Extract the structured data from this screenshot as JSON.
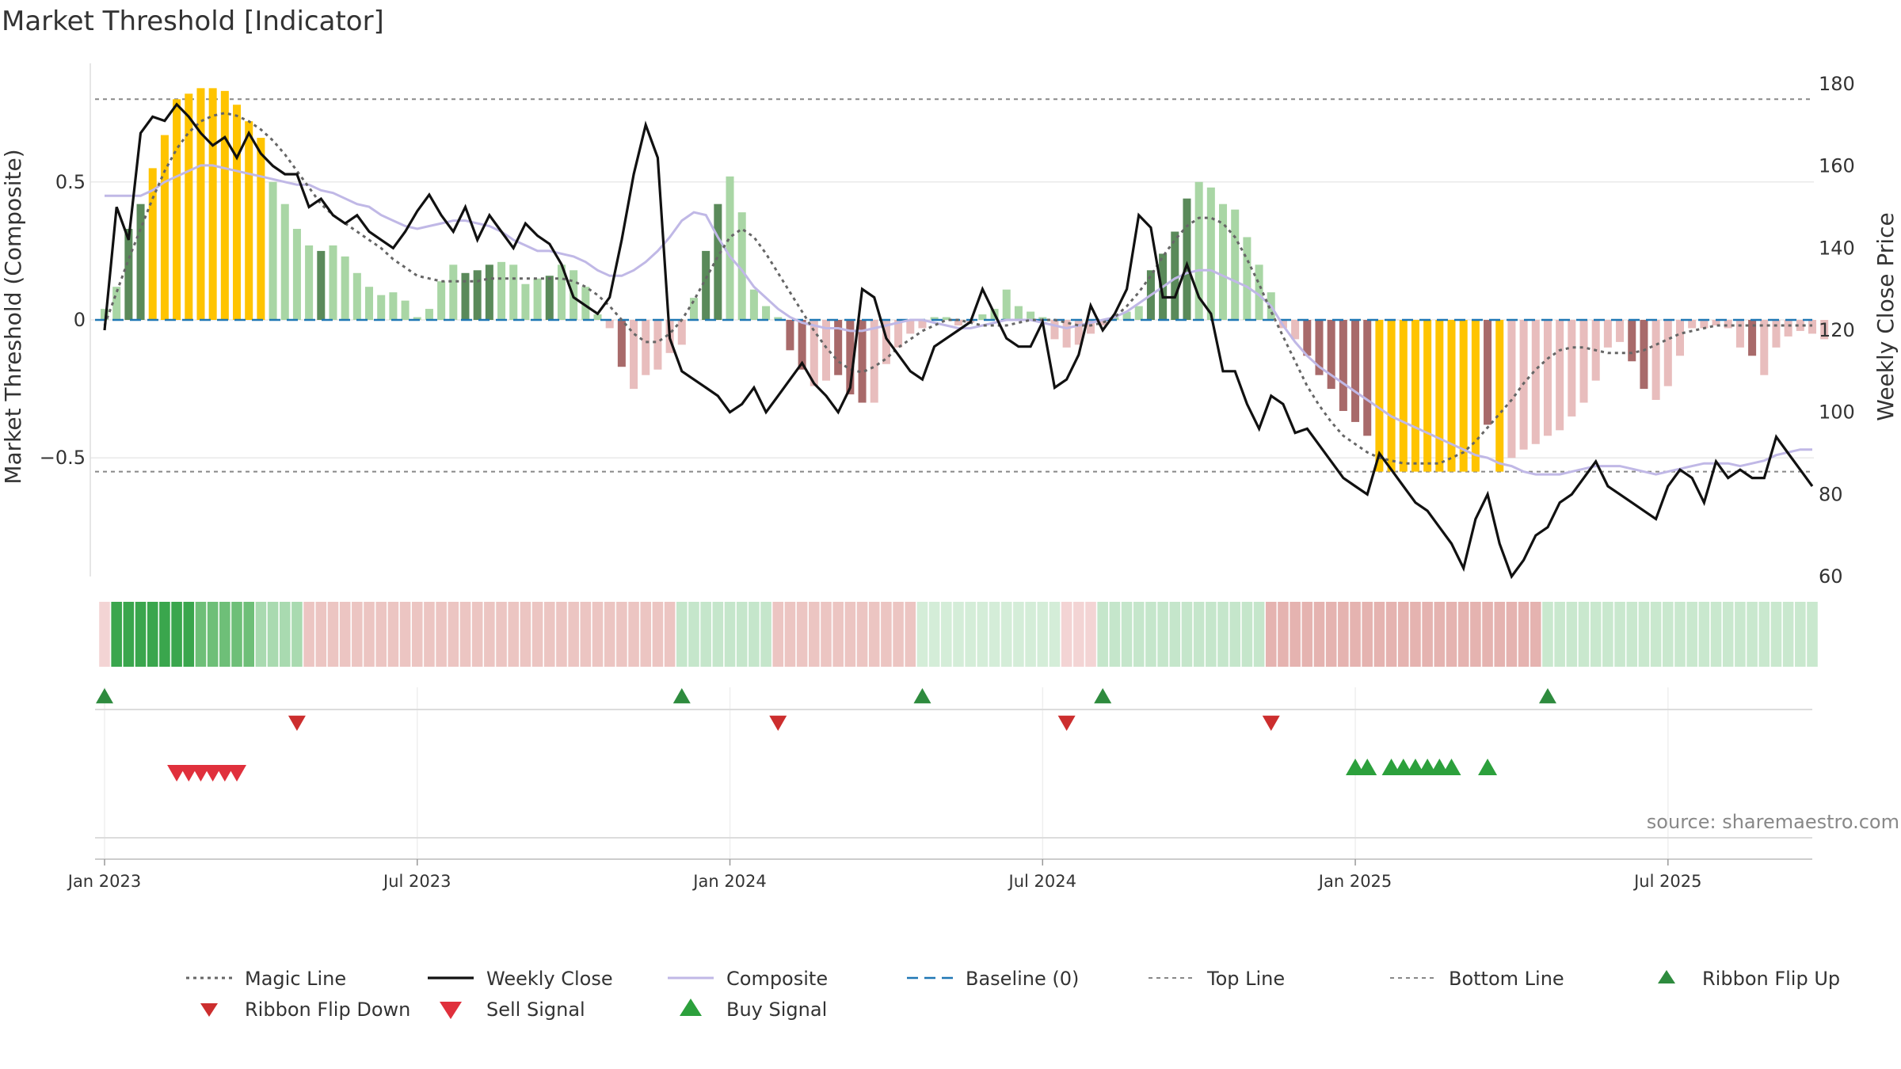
{
  "chart_data": {
    "type": "bar",
    "title": "Market Threshold [Indicator]",
    "ylabel_left": "Market Threshold (Composite)",
    "ylabel_right": "Weekly Close Price",
    "source": "source: sharemaestro.com",
    "left_ticks": [
      {
        "v": 0.5,
        "label": "0.5"
      },
      {
        "v": 0,
        "label": "0"
      },
      {
        "v": -0.5,
        "label": "−0.5"
      }
    ],
    "right_ticks": [
      {
        "v": 180,
        "label": "180"
      },
      {
        "v": 160,
        "label": "160"
      },
      {
        "v": 140,
        "label": "140"
      },
      {
        "v": 120,
        "label": "120"
      },
      {
        "v": 100,
        "label": "100"
      },
      {
        "v": 80,
        "label": "80"
      },
      {
        "v": 60,
        "label": "60"
      }
    ],
    "x_ticks": [
      {
        "label": "Jan 2023",
        "week": 0
      },
      {
        "label": "Jul 2023",
        "week": 26
      },
      {
        "label": "Jan 2024",
        "week": 52
      },
      {
        "label": "Jul 2024",
        "week": 78
      },
      {
        "label": "Jan 2025",
        "week": 104
      },
      {
        "label": "Jul 2025",
        "week": 130
      }
    ],
    "left_ylim": [
      -0.93,
      0.93
    ],
    "right_ylim": [
      60,
      185
    ],
    "top_line": 0.8,
    "bottom_line": -0.55,
    "weeks": 143,
    "histogram": [
      0.04,
      0.12,
      0.33,
      0.42,
      0.55,
      0.67,
      0.8,
      0.82,
      0.84,
      0.84,
      0.83,
      0.78,
      0.72,
      0.66,
      0.5,
      0.42,
      0.33,
      0.27,
      0.25,
      0.27,
      0.23,
      0.17,
      0.12,
      0.09,
      0.1,
      0.07,
      0.01,
      0.04,
      0.14,
      0.2,
      0.17,
      0.18,
      0.2,
      0.21,
      0.2,
      0.13,
      0.15,
      0.16,
      0.2,
      0.18,
      0.12,
      0.02,
      -0.03,
      -0.17,
      -0.25,
      -0.2,
      -0.18,
      -0.12,
      -0.09,
      0.08,
      0.25,
      0.42,
      0.52,
      0.39,
      0.11,
      0.05,
      0.01,
      -0.11,
      -0.18,
      -0.24,
      -0.22,
      -0.2,
      -0.27,
      -0.3,
      -0.3,
      -0.16,
      -0.1,
      -0.05,
      -0.03,
      0.01,
      0.01,
      -0.02,
      -0.01,
      0.02,
      0.04,
      0.11,
      0.05,
      0.03,
      0.01,
      -0.07,
      -0.1,
      -0.09,
      -0.05,
      -0.02,
      0.01,
      0.03,
      0.05,
      0.18,
      0.24,
      0.32,
      0.44,
      0.5,
      0.48,
      0.42,
      0.4,
      0.3,
      0.2,
      0.1,
      -0.03,
      -0.07,
      -0.13,
      -0.2,
      -0.25,
      -0.33,
      -0.37,
      -0.42,
      -0.55,
      -0.55,
      -0.55,
      -0.55,
      -0.55,
      -0.55,
      -0.55,
      -0.55,
      -0.55,
      -0.38,
      -0.55,
      -0.5,
      -0.47,
      -0.45,
      -0.42,
      -0.4,
      -0.35,
      -0.3,
      -0.22,
      -0.1,
      -0.08,
      -0.15,
      -0.25,
      -0.29,
      -0.24,
      -0.13,
      -0.03,
      -0.03,
      -0.02,
      -0.03,
      -0.1,
      -0.13,
      -0.2,
      -0.1,
      -0.06,
      -0.04,
      -0.05,
      -0.07
    ],
    "composite": [
      0.45,
      0.45,
      0.45,
      0.45,
      0.47,
      0.5,
      0.52,
      0.54,
      0.56,
      0.56,
      0.55,
      0.54,
      0.53,
      0.52,
      0.51,
      0.5,
      0.49,
      0.49,
      0.47,
      0.46,
      0.44,
      0.42,
      0.41,
      0.38,
      0.36,
      0.34,
      0.33,
      0.34,
      0.35,
      0.36,
      0.36,
      0.35,
      0.34,
      0.32,
      0.29,
      0.27,
      0.25,
      0.25,
      0.24,
      0.23,
      0.21,
      0.18,
      0.16,
      0.16,
      0.18,
      0.21,
      0.25,
      0.3,
      0.36,
      0.39,
      0.38,
      0.3,
      0.23,
      0.18,
      0.12,
      0.08,
      0.04,
      0.01,
      -0.01,
      -0.02,
      -0.03,
      -0.03,
      -0.04,
      -0.04,
      -0.03,
      -0.02,
      -0.01,
      0.0,
      0.0,
      -0.01,
      -0.02,
      -0.03,
      -0.03,
      -0.02,
      -0.01,
      0.0,
      0.0,
      0.0,
      -0.01,
      -0.02,
      -0.03,
      -0.02,
      -0.01,
      0.0,
      0.01,
      0.03,
      0.06,
      0.09,
      0.12,
      0.15,
      0.17,
      0.18,
      0.18,
      0.16,
      0.14,
      0.12,
      0.09,
      0.05,
      -0.02,
      -0.08,
      -0.13,
      -0.17,
      -0.2,
      -0.23,
      -0.26,
      -0.29,
      -0.32,
      -0.35,
      -0.37,
      -0.39,
      -0.41,
      -0.43,
      -0.45,
      -0.47,
      -0.49,
      -0.5,
      -0.52,
      -0.53,
      -0.55,
      -0.56,
      -0.56,
      -0.56,
      -0.55,
      -0.54,
      -0.53,
      -0.53,
      -0.53,
      -0.54,
      -0.55,
      -0.56,
      -0.55,
      -0.54,
      -0.53,
      -0.52,
      -0.52,
      -0.52,
      -0.53,
      -0.52,
      -0.51,
      -0.49,
      -0.48,
      -0.47,
      -0.47
    ],
    "magic_line": [
      -0.02,
      0.1,
      0.22,
      0.33,
      0.44,
      0.54,
      0.62,
      0.68,
      0.72,
      0.74,
      0.75,
      0.74,
      0.72,
      0.69,
      0.65,
      0.6,
      0.54,
      0.48,
      0.42,
      0.38,
      0.35,
      0.32,
      0.29,
      0.26,
      0.22,
      0.19,
      0.16,
      0.15,
      0.14,
      0.14,
      0.14,
      0.14,
      0.15,
      0.15,
      0.15,
      0.15,
      0.15,
      0.15,
      0.15,
      0.14,
      0.12,
      0.09,
      0.05,
      0.0,
      -0.05,
      -0.08,
      -0.08,
      -0.05,
      0.0,
      0.07,
      0.15,
      0.23,
      0.3,
      0.33,
      0.3,
      0.24,
      0.17,
      0.1,
      0.03,
      -0.04,
      -0.1,
      -0.15,
      -0.18,
      -0.19,
      -0.17,
      -0.14,
      -0.1,
      -0.07,
      -0.04,
      -0.02,
      0.0,
      0.0,
      -0.01,
      -0.02,
      -0.02,
      -0.02,
      -0.01,
      0.0,
      0.0,
      0.0,
      -0.01,
      -0.02,
      -0.02,
      -0.01,
      0.01,
      0.05,
      0.1,
      0.16,
      0.23,
      0.29,
      0.34,
      0.37,
      0.37,
      0.35,
      0.3,
      0.22,
      0.13,
      0.03,
      -0.06,
      -0.15,
      -0.24,
      -0.31,
      -0.37,
      -0.42,
      -0.45,
      -0.48,
      -0.5,
      -0.51,
      -0.52,
      -0.52,
      -0.52,
      -0.52,
      -0.5,
      -0.48,
      -0.44,
      -0.39,
      -0.34,
      -0.29,
      -0.23,
      -0.18,
      -0.14,
      -0.11,
      -0.1,
      -0.1,
      -0.11,
      -0.12,
      -0.12,
      -0.12,
      -0.11,
      -0.09,
      -0.07,
      -0.05,
      -0.04,
      -0.03,
      -0.02,
      -0.02,
      -0.02,
      -0.02,
      -0.02,
      -0.02,
      -0.02,
      -0.02,
      -0.02
    ],
    "weekly_close": [
      120,
      150,
      142,
      168,
      172,
      171,
      175,
      172,
      168,
      165,
      167,
      162,
      168,
      163,
      160,
      158,
      158,
      150,
      152,
      148,
      146,
      148,
      144,
      142,
      140,
      144,
      149,
      153,
      148,
      144,
      150,
      142,
      148,
      144,
      140,
      146,
      143,
      141,
      136,
      128,
      126,
      124,
      128,
      142,
      158,
      170,
      162,
      118,
      110,
      108,
      106,
      104,
      100,
      102,
      106,
      100,
      104,
      108,
      112,
      107,
      104,
      100,
      106,
      130,
      128,
      118,
      114,
      110,
      108,
      116,
      118,
      120,
      122,
      130,
      124,
      118,
      116,
      116,
      122,
      106,
      108,
      114,
      126,
      120,
      124,
      130,
      148,
      145,
      128,
      128,
      136,
      128,
      124,
      110,
      110,
      102,
      96,
      104,
      102,
      95,
      96,
      92,
      88,
      84,
      82,
      80,
      90,
      86,
      82,
      78,
      76,
      72,
      68,
      62,
      74,
      80,
      68,
      60,
      64,
      70,
      72,
      78,
      80,
      84,
      88,
      82,
      80,
      78,
      76,
      74,
      82,
      86,
      84,
      78,
      88,
      84,
      86,
      84,
      84,
      94,
      90,
      86,
      82
    ],
    "ribbon": [
      {
        "from": 0,
        "to": 1,
        "color": "#f3d4d4"
      },
      {
        "from": 1,
        "to": 8,
        "color": "#3aa64d"
      },
      {
        "from": 8,
        "to": 13,
        "color": "#6ebf78"
      },
      {
        "from": 13,
        "to": 17,
        "color": "#a9dab0"
      },
      {
        "from": 17,
        "to": 48,
        "color": "#ecc5c2"
      },
      {
        "from": 48,
        "to": 56,
        "color": "#c5e6cb"
      },
      {
        "from": 56,
        "to": 68,
        "color": "#ecc5c2"
      },
      {
        "from": 68,
        "to": 80,
        "color": "#d4edd8"
      },
      {
        "from": 80,
        "to": 83,
        "color": "#f3d4d4"
      },
      {
        "from": 83,
        "to": 97,
        "color": "#c5e6cb"
      },
      {
        "from": 97,
        "to": 120,
        "color": "#e5b3b0"
      },
      {
        "from": 120,
        "to": 143,
        "color": "#c9e8ce"
      }
    ],
    "ribbon_flip_up_weeks": [
      0,
      48,
      68,
      83,
      120
    ],
    "ribbon_flip_down_weeks": [
      16,
      56,
      80,
      97
    ],
    "sell_signal_weeks": [
      6,
      7,
      8,
      9,
      10,
      11
    ],
    "buy_signal_weeks": [
      104,
      105,
      107,
      108,
      109,
      110,
      111,
      112,
      115
    ],
    "legend": [
      {
        "key": "magic",
        "label": "Magic Line"
      },
      {
        "key": "close",
        "label": "Weekly Close"
      },
      {
        "key": "composite",
        "label": "Composite"
      },
      {
        "key": "baseline",
        "label": "Baseline (0)"
      },
      {
        "key": "top",
        "label": "Top Line"
      },
      {
        "key": "bottom",
        "label": "Bottom Line"
      },
      {
        "key": "flipup",
        "label": "Ribbon Flip Up"
      },
      {
        "key": "flipdown",
        "label": "Ribbon Flip Down"
      },
      {
        "key": "sell",
        "label": "Sell Signal"
      },
      {
        "key": "buy",
        "label": "Buy Signal"
      }
    ],
    "colors": {
      "strong_green": "#5a8a5a",
      "light_green": "#a9d6a5",
      "strong_red": "#a86a6a",
      "light_red": "#e8bdbd",
      "extreme": "#ffc400",
      "close": "#111111",
      "composite": "#c0b8e6",
      "magic": "#666666",
      "baseline": "#1f77b4",
      "threshold": "#888888",
      "flip": "#2e8b3e",
      "flip_down": "#cc2e2e",
      "sell": "#e0303c",
      "buy": "#2ca03c"
    }
  }
}
